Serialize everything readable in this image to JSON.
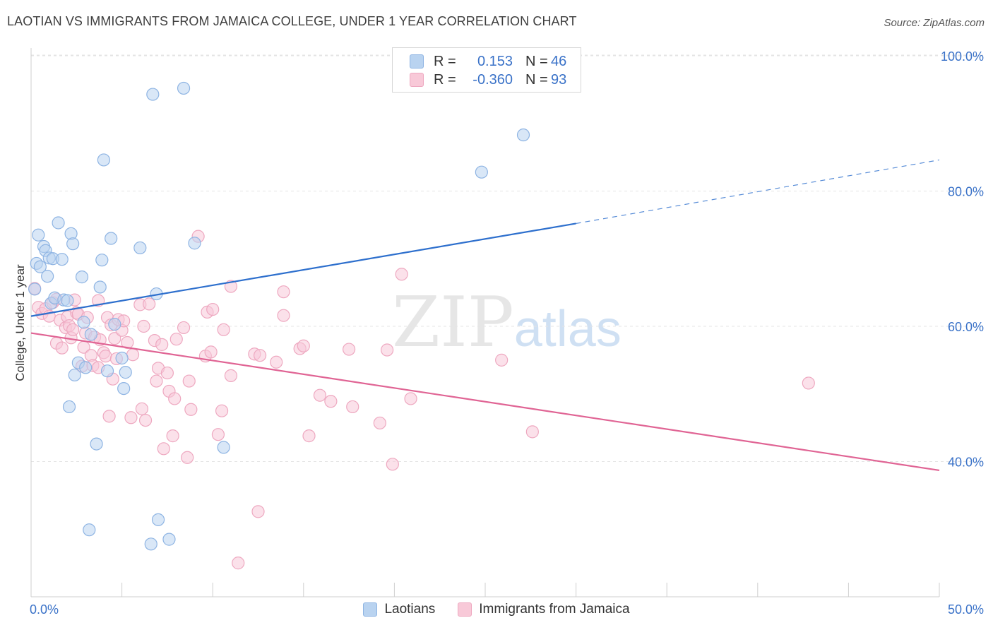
{
  "title": "LAOTIAN VS IMMIGRANTS FROM JAMAICA COLLEGE, UNDER 1 YEAR CORRELATION CHART",
  "source": "Source: ZipAtlas.com",
  "watermark": {
    "a": "ZIP",
    "b": "atlas"
  },
  "legend_top": [
    {
      "r_label": "R =",
      "r_value": "0.153",
      "n_label": "N =",
      "n_value": "46"
    },
    {
      "r_label": "R =",
      "r_value": "-0.360",
      "n_label": "N =",
      "n_value": "93"
    }
  ],
  "colors": {
    "blue_fill": "#b9d3f0",
    "blue_stroke": "#8eb4e3",
    "blue_line": "#2d6fcd",
    "pink_fill": "#f8c9d8",
    "pink_stroke": "#eea8c0",
    "pink_line": "#e06494",
    "axis_text": "#3a72c8",
    "grid": "#e4e4e4"
  },
  "chart_data": {
    "type": "scatter",
    "title": "LAOTIAN VS IMMIGRANTS FROM JAMAICA COLLEGE, UNDER 1 YEAR CORRELATION CHART",
    "xlabel": "",
    "ylabel": "College, Under 1 year",
    "xlim": [
      0,
      50
    ],
    "ylim": [
      20,
      103
    ],
    "x_tick_labels": [
      "0.0%",
      "50.0%"
    ],
    "y_ticks": [
      40,
      60,
      80,
      100
    ],
    "y_tick_labels": [
      "40.0%",
      "60.0%",
      "80.0%",
      "100.0%"
    ],
    "grid": true,
    "legend_position": "bottom",
    "series": [
      {
        "name": "Laotians",
        "r": 0.153,
        "n": 46,
        "trend": {
          "x": [
            0,
            30
          ],
          "y": [
            61.5,
            75.2
          ],
          "dashed_to": [
            50,
            84.6
          ]
        },
        "points": [
          [
            0.3,
            69.3
          ],
          [
            0.4,
            73.5
          ],
          [
            0.5,
            68.8
          ],
          [
            0.7,
            71.8
          ],
          [
            0.8,
            71.2
          ],
          [
            0.9,
            67.4
          ],
          [
            1.0,
            70.1
          ],
          [
            1.1,
            63.4
          ],
          [
            1.2,
            70.0
          ],
          [
            1.3,
            64.2
          ],
          [
            1.5,
            75.3
          ],
          [
            1.7,
            69.9
          ],
          [
            1.8,
            63.9
          ],
          [
            2.0,
            63.8
          ],
          [
            2.1,
            48.1
          ],
          [
            2.2,
            73.7
          ],
          [
            2.3,
            72.2
          ],
          [
            2.4,
            52.8
          ],
          [
            2.6,
            54.6
          ],
          [
            2.8,
            67.3
          ],
          [
            2.9,
            60.6
          ],
          [
            3.0,
            53.9
          ],
          [
            3.2,
            29.9
          ],
          [
            3.3,
            58.8
          ],
          [
            3.6,
            42.6
          ],
          [
            3.8,
            65.8
          ],
          [
            3.9,
            69.8
          ],
          [
            4.0,
            84.6
          ],
          [
            4.2,
            53.4
          ],
          [
            4.4,
            73.0
          ],
          [
            4.6,
            60.3
          ],
          [
            5.0,
            55.3
          ],
          [
            5.1,
            50.8
          ],
          [
            5.2,
            53.2
          ],
          [
            6.0,
            71.6
          ],
          [
            6.6,
            27.8
          ],
          [
            6.7,
            94.3
          ],
          [
            6.9,
            64.8
          ],
          [
            7.0,
            31.4
          ],
          [
            7.6,
            28.5
          ],
          [
            8.4,
            95.2
          ],
          [
            9.0,
            72.3
          ],
          [
            10.6,
            42.1
          ],
          [
            24.8,
            82.8
          ],
          [
            27.1,
            88.3
          ],
          [
            0.2,
            65.5
          ]
        ]
      },
      {
        "name": "Immigrants from Jamaica",
        "r": -0.36,
        "n": 93,
        "trend": {
          "x": [
            0,
            50
          ],
          "y": [
            59.0,
            38.7
          ]
        },
        "points": [
          [
            0.2,
            65.6
          ],
          [
            0.4,
            62.8
          ],
          [
            0.6,
            61.9
          ],
          [
            0.8,
            62.6
          ],
          [
            1.0,
            61.5
          ],
          [
            1.2,
            63.5
          ],
          [
            1.4,
            57.5
          ],
          [
            1.6,
            60.9
          ],
          [
            1.7,
            56.8
          ],
          [
            1.9,
            59.8
          ],
          [
            2.0,
            61.4
          ],
          [
            2.1,
            60.1
          ],
          [
            2.2,
            58.3
          ],
          [
            2.4,
            63.9
          ],
          [
            2.5,
            62.0
          ],
          [
            2.6,
            61.8
          ],
          [
            2.8,
            54.1
          ],
          [
            2.9,
            56.9
          ],
          [
            3.0,
            59.0
          ],
          [
            3.1,
            61.3
          ],
          [
            3.3,
            55.7
          ],
          [
            3.4,
            54.2
          ],
          [
            3.5,
            58.4
          ],
          [
            3.7,
            63.8
          ],
          [
            3.8,
            58.0
          ],
          [
            4.0,
            56.1
          ],
          [
            4.1,
            55.6
          ],
          [
            4.2,
            61.3
          ],
          [
            4.3,
            46.7
          ],
          [
            4.4,
            60.2
          ],
          [
            4.5,
            52.2
          ],
          [
            4.6,
            58.2
          ],
          [
            4.7,
            55.2
          ],
          [
            4.8,
            61.0
          ],
          [
            5.0,
            59.4
          ],
          [
            5.1,
            60.8
          ],
          [
            5.3,
            57.6
          ],
          [
            5.5,
            46.5
          ],
          [
            5.6,
            55.8
          ],
          [
            6.0,
            63.2
          ],
          [
            6.2,
            60.0
          ],
          [
            6.3,
            46.1
          ],
          [
            6.5,
            63.3
          ],
          [
            6.8,
            57.9
          ],
          [
            6.9,
            51.9
          ],
          [
            7.0,
            53.8
          ],
          [
            7.2,
            57.3
          ],
          [
            7.5,
            53.1
          ],
          [
            7.6,
            50.4
          ],
          [
            7.8,
            43.8
          ],
          [
            7.9,
            49.3
          ],
          [
            8.0,
            58.1
          ],
          [
            8.4,
            59.8
          ],
          [
            8.6,
            40.6
          ],
          [
            8.7,
            51.9
          ],
          [
            8.8,
            47.7
          ],
          [
            9.2,
            73.3
          ],
          [
            9.6,
            55.6
          ],
          [
            9.7,
            62.1
          ],
          [
            10.0,
            62.5
          ],
          [
            10.3,
            44.0
          ],
          [
            10.5,
            47.5
          ],
          [
            10.6,
            59.5
          ],
          [
            11.0,
            52.7
          ],
          [
            11.0,
            65.9
          ],
          [
            11.4,
            25.0
          ],
          [
            12.3,
            55.9
          ],
          [
            12.5,
            32.6
          ],
          [
            12.6,
            55.7
          ],
          [
            13.5,
            54.7
          ],
          [
            13.9,
            61.6
          ],
          [
            13.9,
            65.1
          ],
          [
            14.8,
            56.7
          ],
          [
            15.0,
            57.1
          ],
          [
            15.3,
            43.8
          ],
          [
            15.9,
            49.8
          ],
          [
            16.5,
            48.9
          ],
          [
            17.5,
            56.6
          ],
          [
            17.7,
            48.1
          ],
          [
            19.2,
            45.7
          ],
          [
            19.6,
            56.5
          ],
          [
            19.9,
            39.6
          ],
          [
            20.4,
            67.7
          ],
          [
            20.9,
            49.3
          ],
          [
            25.9,
            55.0
          ],
          [
            27.6,
            44.4
          ],
          [
            42.8,
            51.6
          ],
          [
            7.3,
            41.9
          ],
          [
            3.7,
            53.9
          ],
          [
            9.9,
            56.2
          ],
          [
            6.1,
            47.8
          ],
          [
            2.3,
            59.5
          ],
          [
            1.4,
            64.0
          ]
        ]
      }
    ]
  },
  "legend_bottom": [
    {
      "label": "Laotians"
    },
    {
      "label": "Immigrants from Jamaica"
    }
  ]
}
